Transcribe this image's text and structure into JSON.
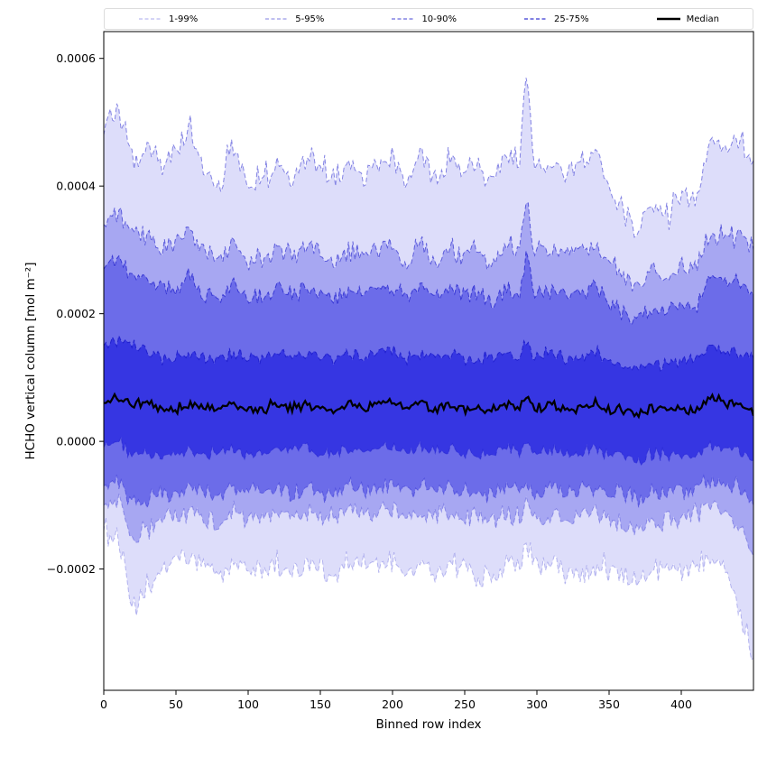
{
  "legend": {
    "items": [
      "1-99%",
      "5-95%",
      "10-90%",
      "25-75%",
      "Median"
    ]
  },
  "chart_data": {
    "type": "area",
    "title": "",
    "xlabel": "Binned row index",
    "ylabel": "HCHO vertical column [mol m⁻²]",
    "xlim": [
      0,
      450
    ],
    "ylim": [
      -0.00039,
      0.000642
    ],
    "xticks": [
      0,
      50,
      100,
      150,
      200,
      250,
      300,
      350,
      400
    ],
    "xtick_labels": [
      "0",
      "50",
      "100",
      "150",
      "200",
      "250",
      "300",
      "350",
      "400"
    ],
    "yticks": [
      -0.0002,
      0.0,
      0.0002,
      0.0004,
      0.0006
    ],
    "ytick_labels": [
      "−0.0002",
      "0.0000",
      "0.0002",
      "0.0004",
      "0.0006"
    ],
    "grid": false,
    "legend_position": "top",
    "colors": {
      "band_fill": "#2b2be0",
      "band_line": "#1c1ccc",
      "median": "#000000",
      "background": "#ffffff",
      "legend_border": "#dcdcdc"
    },
    "value_scale": 1e-05,
    "x": [
      0,
      10,
      20,
      30,
      40,
      50,
      60,
      70,
      80,
      90,
      100,
      110,
      120,
      130,
      140,
      150,
      160,
      170,
      180,
      190,
      200,
      210,
      220,
      230,
      240,
      250,
      260,
      270,
      280,
      288,
      293,
      298,
      300,
      310,
      320,
      330,
      340,
      350,
      360,
      370,
      380,
      390,
      400,
      410,
      420,
      430,
      440,
      450
    ],
    "series": {
      "p1": {
        "noise": 2.6,
        "values": [
          -14,
          -15,
          -27,
          -23,
          -20,
          -19,
          -18,
          -20,
          -21,
          -19,
          -20,
          -20,
          -19,
          -21,
          -19,
          -20,
          -21,
          -19,
          -20,
          -19,
          -19,
          -21,
          -19,
          -21,
          -19,
          -20,
          -21,
          -21,
          -19,
          -20,
          -15,
          -20,
          -20,
          -19,
          -21,
          -21,
          -19,
          -20,
          -21,
          -22,
          -20,
          -20,
          -21,
          -19,
          -17,
          -19,
          -26,
          -34
        ]
      },
      "p5": {
        "noise": 2.2,
        "values": [
          -10,
          -9,
          -16,
          -14,
          -12,
          -12,
          -11,
          -12,
          -13,
          -11,
          -12,
          -12,
          -11,
          -12,
          -11,
          -12,
          -12,
          -11,
          -12,
          -11,
          -11,
          -12,
          -11,
          -12,
          -11,
          -12,
          -12,
          -12,
          -11,
          -12,
          -10,
          -12,
          -12,
          -11,
          -12,
          -12,
          -11,
          -12,
          -13,
          -14,
          -12,
          -12,
          -12,
          -11,
          -10,
          -11,
          -13,
          -18
        ]
      },
      "p10": {
        "noise": 1.8,
        "values": [
          -7,
          -6,
          -10,
          -9,
          -8,
          -8,
          -7,
          -8,
          -9,
          -7,
          -8,
          -8,
          -7,
          -8,
          -7,
          -8,
          -8,
          -7,
          -8,
          -7,
          -7,
          -8,
          -7,
          -8,
          -7,
          -8,
          -8,
          -8,
          -7,
          -8,
          -6,
          -8,
          -8,
          -7,
          -8,
          -8,
          -7,
          -8,
          -8,
          -9,
          -8,
          -8,
          -8,
          -7,
          -6,
          -7,
          -7,
          -10
        ]
      },
      "p25": {
        "noise": 1.3,
        "values": [
          -1,
          0,
          -2,
          -2,
          -2,
          -2,
          -1,
          -2,
          -2,
          -1,
          -2,
          -2,
          -1,
          -2,
          -1,
          -2,
          -2,
          -1,
          -2,
          -1,
          -1,
          -2,
          -1,
          -2,
          -1,
          -2,
          -2,
          -2,
          -1,
          -2,
          0,
          -2,
          -2,
          -1,
          -2,
          -2,
          -1,
          -2,
          -2,
          -3,
          -2,
          -2,
          -2,
          -2,
          -1,
          -1,
          -1,
          -3
        ]
      },
      "median": {
        "noise": 1.0,
        "values": [
          6,
          7,
          6,
          6,
          5,
          5,
          6,
          5,
          5,
          6,
          5,
          5,
          6,
          5,
          6,
          5,
          5,
          6,
          5,
          6,
          6,
          5,
          6,
          5,
          6,
          5,
          5,
          5,
          6,
          5,
          7,
          5,
          5,
          6,
          5,
          5,
          6,
          5,
          5,
          4,
          5,
          5,
          5,
          5,
          7,
          6,
          6,
          4
        ]
      },
      "p75": {
        "noise": 1.3,
        "values": [
          15,
          16,
          15,
          14,
          13,
          13,
          14,
          13,
          13,
          14,
          13,
          13,
          14,
          13,
          14,
          13,
          13,
          14,
          13,
          14,
          14,
          13,
          14,
          13,
          14,
          13,
          13,
          13,
          14,
          13,
          16,
          13,
          13,
          14,
          13,
          13,
          14,
          13,
          12,
          11,
          12,
          12,
          13,
          13,
          15,
          14,
          14,
          13
        ]
      },
      "p90": {
        "noise": 1.8,
        "values": [
          27,
          28,
          26,
          25,
          24,
          24,
          26,
          23,
          22,
          25,
          22,
          23,
          24,
          23,
          24,
          23,
          22,
          24,
          23,
          24,
          24,
          22,
          25,
          22,
          24,
          23,
          23,
          22,
          24,
          23,
          30,
          23,
          23,
          24,
          23,
          23,
          24,
          22,
          20,
          19,
          21,
          20,
          22,
          21,
          26,
          25,
          25,
          23
        ]
      },
      "p95": {
        "noise": 2.2,
        "values": [
          34,
          36,
          33,
          32,
          30,
          31,
          33,
          29,
          28,
          32,
          28,
          29,
          30,
          29,
          31,
          30,
          28,
          30,
          29,
          30,
          31,
          28,
          32,
          28,
          30,
          29,
          30,
          28,
          31,
          30,
          40,
          29,
          30,
          30,
          29,
          30,
          31,
          28,
          26,
          24,
          27,
          25,
          28,
          27,
          33,
          32,
          32,
          30
        ]
      },
      "p99": {
        "noise": 2.8,
        "values": [
          48,
          53,
          44,
          46,
          43,
          45,
          50,
          41,
          40,
          47,
          39,
          42,
          43,
          42,
          44,
          43,
          41,
          44,
          42,
          43,
          45,
          40,
          46,
          41,
          44,
          42,
          43,
          41,
          45,
          44,
          59,
          43,
          43,
          44,
          42,
          43,
          45,
          40,
          36,
          33,
          38,
          35,
          39,
          37,
          48,
          46,
          47,
          44
        ]
      }
    },
    "bands": [
      {
        "label": "1-99%",
        "lower": "p1",
        "upper": "p99",
        "fill_opacity": 0.16,
        "line_opacity": 0.5,
        "legend_opacity": 0.3
      },
      {
        "label": "5-95%",
        "lower": "p5",
        "upper": "p95",
        "fill_opacity": 0.3,
        "line_opacity": 0.6,
        "legend_opacity": 0.45
      },
      {
        "label": "10-90%",
        "lower": "p10",
        "upper": "p90",
        "fill_opacity": 0.48,
        "line_opacity": 0.72,
        "legend_opacity": 0.65
      },
      {
        "label": "25-75%",
        "lower": "p25",
        "upper": "p75",
        "fill_opacity": 0.82,
        "line_opacity": 0.9,
        "legend_opacity": 0.88
      }
    ],
    "median_line": {
      "label": "Median",
      "series": "median",
      "width": 2.2
    }
  }
}
